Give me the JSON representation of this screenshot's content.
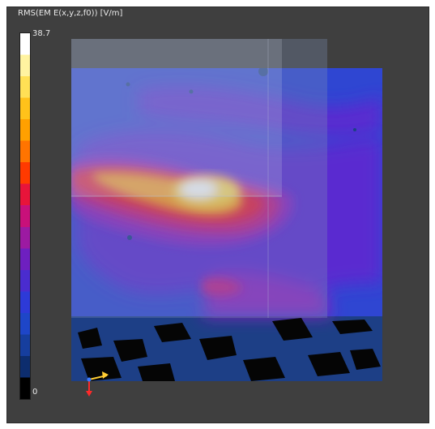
{
  "legend": {
    "title": "RMS(EM E(x,y,z,f0)) [V/m]",
    "max_label": "38.7",
    "min_label": "0",
    "colors": [
      "#ffffff",
      "#fff3a0",
      "#ffe055",
      "#ffc21a",
      "#ffa000",
      "#ff7400",
      "#ff3a00",
      "#e8143a",
      "#c8107a",
      "#9c1aa2",
      "#6e1fc0",
      "#4a2ccf",
      "#2d3ad8",
      "#1e46c8",
      "#163e9e",
      "#0d2d6e",
      "#000000"
    ]
  },
  "field_colors": {
    "background": "#3f3f3f",
    "dark_blue": "#1d3f86",
    "blue": "#2f46d2",
    "blue_violet": "#5a2ad0",
    "violet": "#8b24c0",
    "magenta": "#c21a86",
    "red": "#ea1e3a",
    "orange_red": "#ff5a12",
    "orange": "#ff9d1a",
    "yellow": "#ffd84a",
    "pale_yellow": "#fff3b0",
    "white": "#ffffff",
    "black": "#050505"
  },
  "icons": {
    "axes": "axis-triad-icon"
  }
}
